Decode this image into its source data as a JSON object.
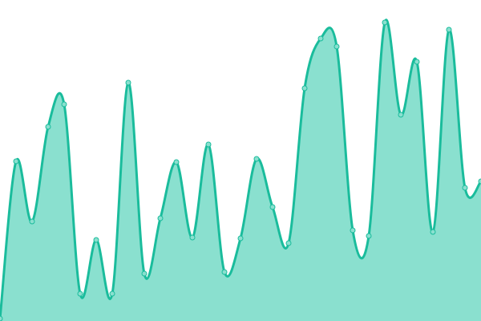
{
  "chart_data": {
    "type": "area",
    "title": "",
    "xlabel": "",
    "ylabel": "",
    "x": [
      0,
      1,
      2,
      3,
      4,
      5,
      6,
      7,
      8,
      9,
      10,
      11,
      12,
      13,
      14,
      15,
      16,
      17,
      18,
      19,
      20,
      21,
      22,
      23,
      24,
      25,
      26,
      27,
      28,
      29,
      30
    ],
    "series": [
      {
        "values": [
          3,
          199,
          124,
          242,
          270,
          34,
          101,
          34,
          297,
          59,
          128,
          198,
          104,
          220,
          61,
          103,
          202,
          142,
          97,
          290,
          352,
          342,
          113,
          106,
          372,
          257,
          323,
          111,
          363,
          166,
          174
        ]
      }
    ],
    "ylim": [
      0,
      400
    ],
    "xlim": [
      0,
      30
    ],
    "grid": false,
    "axes_visible": false,
    "curve": "smooth",
    "colors": {
      "line": "#1abc9c",
      "fill": "#8ae0cf",
      "marker_fill": "#8ae0cf",
      "marker_stroke": "#1abc9c"
    }
  }
}
